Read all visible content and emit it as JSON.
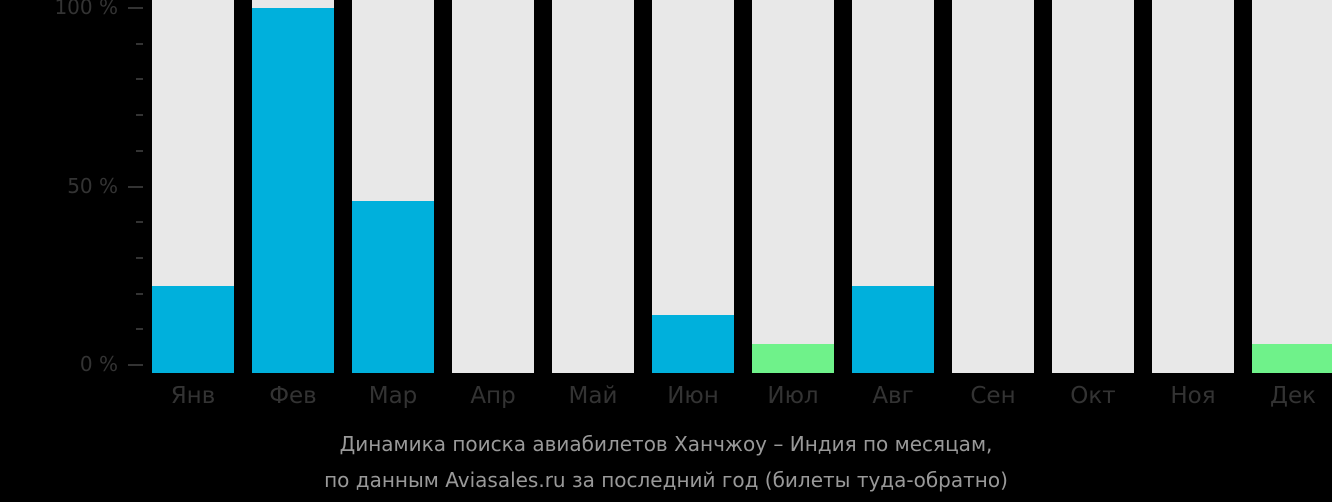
{
  "chart_data": {
    "type": "bar",
    "title": "Динамика поиска авиабилетов Ханчжоу – Индия по месяцам, по данным Aviasales.ru за последний год (билеты туда-обратно)",
    "categories": [
      "Янв",
      "Фев",
      "Мар",
      "Апр",
      "Май",
      "Июн",
      "Июл",
      "Авг",
      "Сен",
      "Окт",
      "Ноя",
      "Дек"
    ],
    "values": [
      22,
      100,
      46,
      0,
      0,
      14,
      6,
      22,
      0,
      0,
      0,
      6
    ],
    "bar_colors": [
      "#00b0dc",
      "#00b0dc",
      "#00b0dc",
      "#00b0dc",
      "#00b0dc",
      "#00b0dc",
      "#6ff28a",
      "#00b0dc",
      "#00b0dc",
      "#00b0dc",
      "#00b0dc",
      "#6ff28a"
    ],
    "background_bar_color": "#e8e8e8",
    "xlabel": "",
    "ylabel": "",
    "ylim": [
      0,
      100
    ],
    "yticks": [
      "0 %",
      "50 %",
      "100 %"
    ],
    "grid": false
  },
  "caption": {
    "line1": "Динамика поиска авиабилетов Ханчжоу – Индия по месяцам,",
    "line2": "по данным Aviasales.ru за последний год (билеты туда-обратно)"
  }
}
